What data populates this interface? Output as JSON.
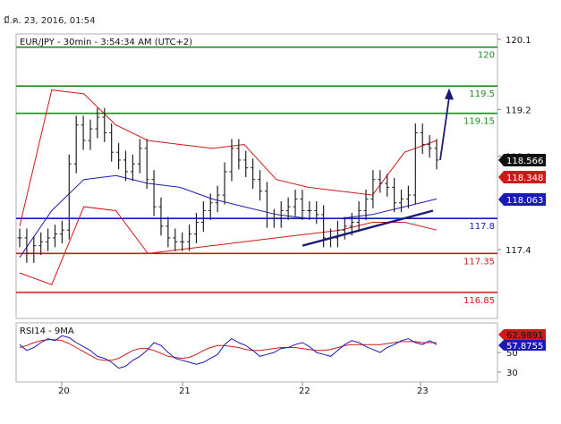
{
  "header": {
    "timestamp": "มี.ค. 23, 2016, 01:54"
  },
  "chart_data": {
    "type": "line",
    "title": "EUR/JPY - 30min - 3:54:34 AM (UTC+2)",
    "price_axis": {
      "ylim": [
        117.0,
        120.1
      ],
      "ticks": [
        "120.1",
        "119.2",
        "118.6",
        "117.4"
      ]
    },
    "x_axis": {
      "ticks": [
        "20",
        "21",
        "22",
        "23"
      ]
    },
    "levels": [
      {
        "value": 120.0,
        "label": "120",
        "color": "#1f8a1f"
      },
      {
        "value": 119.5,
        "label": "119.5",
        "color": "#1f8a1f"
      },
      {
        "value": 119.15,
        "label": "119.15",
        "color": "#1f8a1f"
      },
      {
        "value": 117.8,
        "label": "117.8",
        "color": "#1a1ab8"
      },
      {
        "value": 117.35,
        "label": "117.35",
        "color": "#d01818"
      },
      {
        "value": 116.85,
        "label": "116.85",
        "color": "#d01818"
      }
    ],
    "price_tags": [
      {
        "value": 118.566,
        "label": "118.566",
        "bg": "#111111",
        "fg": "#ffffff"
      },
      {
        "value": 118.348,
        "label": "118.348",
        "bg": "#d01818",
        "fg": "#ffffff"
      },
      {
        "value": 118.063,
        "label": "118.063",
        "bg": "#1a1ab8",
        "fg": "#ffffff"
      }
    ],
    "price_series": [
      117.55,
      117.35,
      117.45,
      117.5,
      117.55,
      117.6,
      117.65,
      118.5,
      119.0,
      118.8,
      118.95,
      119.1,
      118.9,
      118.65,
      118.55,
      118.4,
      118.5,
      118.7,
      118.3,
      117.95,
      117.7,
      117.55,
      117.5,
      117.5,
      117.6,
      117.75,
      117.9,
      118.0,
      118.1,
      118.4,
      118.7,
      118.55,
      118.45,
      118.3,
      118.15,
      117.8,
      117.8,
      117.9,
      117.95,
      118.05,
      117.9,
      117.9,
      117.85,
      117.55,
      117.55,
      117.65,
      117.7,
      117.75,
      117.9,
      118.05,
      118.3,
      118.25,
      118.2,
      118.0,
      118.05,
      118.1,
      118.9,
      118.75,
      118.7,
      118.55
    ],
    "ma_values": [
      117.3,
      117.9,
      118.3,
      118.35,
      118.25,
      118.2,
      118.05,
      117.95,
      117.85,
      117.8,
      117.8,
      117.85,
      117.95,
      118.05
    ],
    "bollinger_upper": [
      117.7,
      119.45,
      119.4,
      119.0,
      118.8,
      118.75,
      118.7,
      118.75,
      118.3,
      118.2,
      118.15,
      118.1,
      118.65,
      118.8
    ],
    "bollinger_lower": [
      117.1,
      116.95,
      117.95,
      117.9,
      117.35,
      117.4,
      117.45,
      117.5,
      117.55,
      117.6,
      117.65,
      117.75,
      117.75,
      117.65
    ],
    "trendline": [
      {
        "x": "22",
        "y": 117.45
      },
      {
        "x": "23",
        "y": 117.9
      }
    ],
    "projection_arrow": {
      "from": 118.55,
      "to": 119.45
    },
    "rsi": {
      "title": "RSI14 - 9MA",
      "ticks": [
        "50",
        "30"
      ],
      "tags": [
        {
          "value": 62.9891,
          "label": "62.9891",
          "bg": "#d01818",
          "fg": "#111111"
        },
        {
          "value": 57.8755,
          "label": "57.8755",
          "bg": "#1a1ab8",
          "fg": "#ffffff"
        }
      ],
      "values": [
        58,
        52,
        55,
        60,
        64,
        62,
        67,
        65,
        60,
        56,
        52,
        46,
        44,
        40,
        34,
        36,
        42,
        46,
        52,
        60,
        57,
        50,
        44,
        42,
        40,
        38,
        40,
        44,
        48,
        58,
        64,
        60,
        57,
        52,
        46,
        48,
        50,
        54,
        55,
        58,
        60,
        56,
        50,
        48,
        46,
        52,
        58,
        62,
        60,
        56,
        53,
        50,
        55,
        58,
        62,
        64,
        60,
        58,
        62,
        58
      ],
      "ma": [
        55,
        57,
        60,
        62,
        63,
        63,
        62,
        59,
        55,
        51,
        47,
        43,
        42,
        42,
        44,
        48,
        52,
        54,
        54,
        52,
        49,
        46,
        45,
        44,
        45,
        48,
        52,
        55,
        57,
        57,
        56,
        55,
        53,
        52,
        52,
        53,
        54,
        55,
        55,
        55,
        54,
        53,
        52,
        52,
        53,
        55,
        57,
        58,
        58,
        58,
        58,
        58,
        59,
        60,
        61,
        61,
        61,
        60,
        60,
        60
      ]
    }
  },
  "colors": {
    "frame": "#b0b0b0",
    "price": "#222222",
    "bands": "#d01818",
    "ma": "#1a1ab8",
    "arrow": "#1a1a7a"
  }
}
